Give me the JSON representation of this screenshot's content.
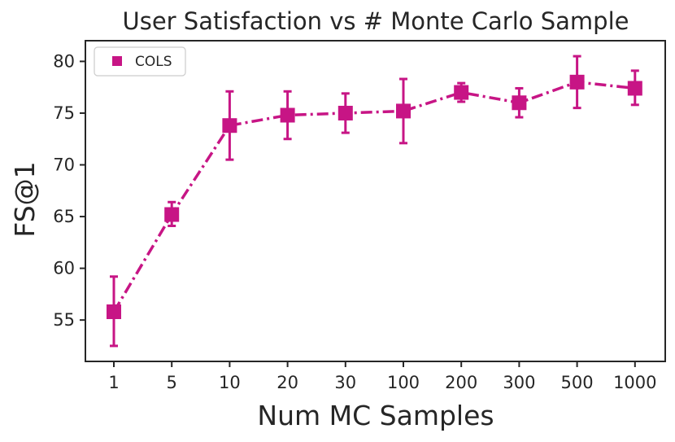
{
  "chart_data": {
    "type": "line",
    "title": "User Satisfaction vs # Monte Carlo Sample",
    "xlabel": "Num MC Samples",
    "ylabel": "FS@1",
    "categories": [
      "1",
      "5",
      "10",
      "20",
      "30",
      "100",
      "200",
      "300",
      "500",
      "1000"
    ],
    "ylim": [
      51,
      82
    ],
    "yticks": [
      55,
      60,
      65,
      70,
      75,
      80
    ],
    "yticklabels": [
      "55",
      "60",
      "65",
      "70",
      "75",
      "80"
    ],
    "grid": false,
    "legend_position": "top-left",
    "series": [
      {
        "name": "COLS",
        "color": "#c71585",
        "values": [
          55.8,
          65.2,
          73.8,
          74.8,
          75.0,
          75.2,
          77.0,
          76.0,
          78.0,
          77.4
        ],
        "err_low": [
          52.5,
          64.1,
          70.5,
          72.5,
          73.1,
          72.1,
          76.1,
          74.6,
          75.5,
          75.8
        ],
        "err_high": [
          59.2,
          66.4,
          77.1,
          77.1,
          76.9,
          78.3,
          77.9,
          77.4,
          80.5,
          79.1
        ]
      }
    ]
  }
}
